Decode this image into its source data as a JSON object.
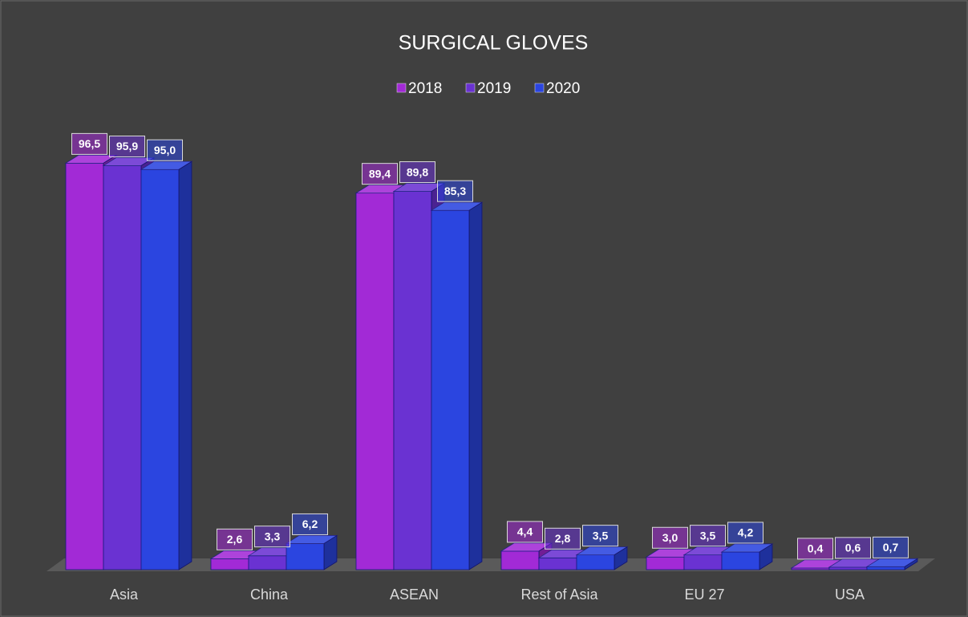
{
  "chart_data": {
    "type": "bar3d",
    "title": "SURGICAL GLOVES",
    "categories": [
      "Asia",
      "China",
      "ASEAN",
      "Rest of Asia",
      "EU 27",
      "USA"
    ],
    "series": [
      {
        "name": "2018",
        "color": "#a22ad6",
        "values": [
          96.5,
          2.6,
          89.4,
          4.4,
          3.0,
          0.4
        ],
        "value_labels": [
          "96,5",
          "2,6",
          "89,4",
          "4,4",
          "3,0",
          "0,4"
        ]
      },
      {
        "name": "2019",
        "color": "#6a32d2",
        "values": [
          95.9,
          3.3,
          89.8,
          2.8,
          3.5,
          0.6
        ],
        "value_labels": [
          "95,9",
          "3,3",
          "89,8",
          "2,8",
          "3,5",
          "0,6"
        ]
      },
      {
        "name": "2020",
        "color": "#2b45e0",
        "values": [
          95.0,
          6.2,
          85.3,
          3.5,
          4.2,
          0.7
        ],
        "value_labels": [
          "95,0",
          "6,2",
          "85,3",
          "3,5",
          "4,2",
          "0,7"
        ]
      }
    ],
    "ylim": [
      0,
      100
    ],
    "legend": "top"
  }
}
